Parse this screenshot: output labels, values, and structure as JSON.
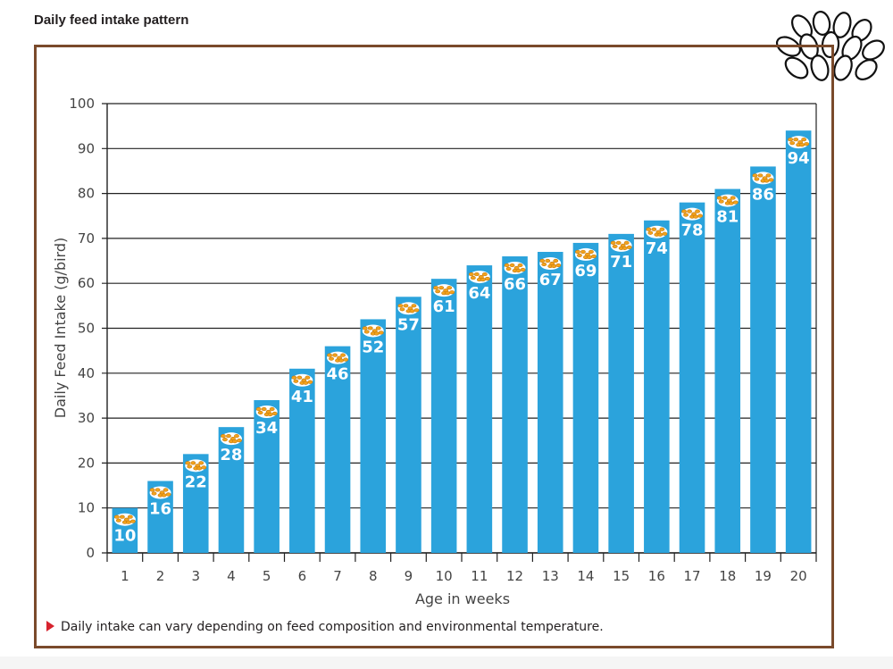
{
  "page": {
    "title": "Daily feed intake pattern",
    "footnote": "Daily intake can vary depending on feed composition and environmental temperature."
  },
  "colors": {
    "bar": "#2ba3dc",
    "frame": "#7a4a2b",
    "grid": "#222222",
    "label": "#ffffff",
    "feed_icon": "#f3a21c",
    "footnote_arrow": "#d7232e"
  },
  "icons": {
    "corner": "grain-icon",
    "bar_top": "feed-pellets-icon",
    "footnote": "triangle-bullet-icon"
  },
  "chart_data": {
    "type": "bar",
    "categories": [
      "1",
      "2",
      "3",
      "4",
      "5",
      "6",
      "7",
      "8",
      "9",
      "10",
      "11",
      "12",
      "13",
      "14",
      "15",
      "16",
      "17",
      "18",
      "19",
      "20"
    ],
    "values": [
      10,
      16,
      22,
      28,
      34,
      41,
      46,
      52,
      57,
      61,
      64,
      66,
      67,
      69,
      71,
      74,
      78,
      81,
      86,
      94
    ],
    "title": "Daily feed intake pattern",
    "xlabel": "Age in weeks",
    "ylabel": "Daily Feed Intake (g/bird)",
    "ylim": [
      0,
      100
    ],
    "yticks": [
      0,
      10,
      20,
      30,
      40,
      50,
      60,
      70,
      80,
      90,
      100
    ],
    "grid": true,
    "data_labels": true,
    "legend": "none"
  }
}
